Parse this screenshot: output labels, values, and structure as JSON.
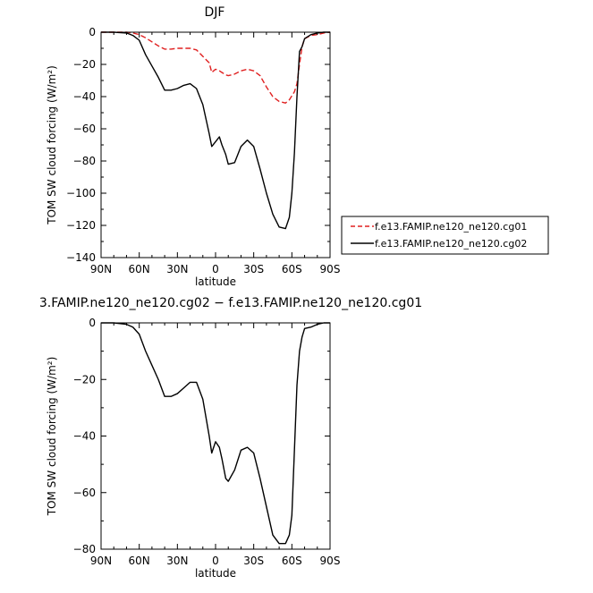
{
  "chart_data": [
    {
      "type": "line",
      "title": "DJF",
      "xlabel": "latitude",
      "ylabel": "TOM SW cloud forcing (W/m²)",
      "xlim": [
        90,
        -90
      ],
      "ylim": [
        -140,
        0
      ],
      "x_ticks": [
        90,
        60,
        30,
        0,
        -30,
        -60,
        -90
      ],
      "x_tick_labels": [
        "90N",
        "60N",
        "30N",
        "0",
        "30S",
        "60S",
        "90S"
      ],
      "y_ticks": [
        0,
        -20,
        -40,
        -60,
        -80,
        -100,
        -120,
        -140
      ],
      "y_tick_labels": [
        "0",
        "−20",
        "−40",
        "−60",
        "−80",
        "−100",
        "−120",
        "−140"
      ],
      "legend_position": "right",
      "series": [
        {
          "name": "f.e13.FAMIP.ne120_ne120.cg01",
          "color": "#e02020",
          "dash": true,
          "x": [
            90,
            80,
            70,
            65,
            60,
            55,
            50,
            45,
            40,
            35,
            30,
            25,
            20,
            15,
            10,
            5,
            3,
            0,
            -3,
            -5,
            -8,
            -10,
            -15,
            -20,
            -25,
            -30,
            -35,
            -40,
            -45,
            -50,
            -55,
            -58,
            -62,
            -64,
            -66,
            -68,
            -70,
            -75,
            -80,
            -85,
            -90
          ],
          "y": [
            0,
            0,
            0,
            -0.5,
            -1.5,
            -3.5,
            -6,
            -8.5,
            -10.5,
            -10.5,
            -10,
            -10,
            -10,
            -11,
            -15,
            -19,
            -25,
            -23,
            -24,
            -25,
            -26.5,
            -27,
            -26,
            -24,
            -23,
            -24,
            -27,
            -34,
            -40,
            -43,
            -44,
            -42,
            -37,
            -32,
            -20,
            -9,
            -4,
            -2,
            -1.5,
            -0.5,
            0
          ]
        },
        {
          "name": "f.e13.FAMIP.ne120_ne120.cg02",
          "color": "#000000",
          "dash": false,
          "x": [
            90,
            80,
            70,
            65,
            60,
            55,
            50,
            45,
            40,
            35,
            30,
            25,
            20,
            15,
            10,
            5,
            3,
            0,
            -3,
            -5,
            -8,
            -10,
            -15,
            -20,
            -25,
            -30,
            -35,
            -40,
            -45,
            -50,
            -55,
            -58,
            -60,
            -62,
            -64,
            -66,
            -68,
            -70,
            -75,
            -80,
            -85,
            -90
          ],
          "y": [
            0,
            0,
            -0.5,
            -2,
            -5,
            -14,
            -21,
            -28,
            -36,
            -36,
            -35,
            -33,
            -32,
            -35,
            -45,
            -63,
            -71,
            -68,
            -65,
            -70,
            -76,
            -82,
            -81,
            -71,
            -67,
            -71,
            -85,
            -100,
            -113,
            -121,
            -122,
            -115,
            -100,
            -75,
            -40,
            -12,
            -9,
            -4,
            -1.5,
            -0.5,
            0,
            0
          ]
        }
      ]
    },
    {
      "type": "line",
      "title": "3.FAMIP.ne120_ne120.cg02 − f.e13.FAMIP.ne120_ne120.cg01",
      "xlabel": "latitude",
      "ylabel": "TOM SW cloud forcing (W/m²)",
      "xlim": [
        90,
        -90
      ],
      "ylim": [
        -80,
        0
      ],
      "x_ticks": [
        90,
        60,
        30,
        0,
        -30,
        -60,
        -90
      ],
      "x_tick_labels": [
        "90N",
        "60N",
        "30N",
        "0",
        "30S",
        "60S",
        "90S"
      ],
      "y_ticks": [
        0,
        -20,
        -40,
        -60,
        -80
      ],
      "y_tick_labels": [
        "0",
        "−20",
        "−40",
        "−60",
        "−80"
      ],
      "series": [
        {
          "color": "#000000",
          "dash": false,
          "x": [
            90,
            80,
            70,
            65,
            60,
            55,
            50,
            45,
            40,
            35,
            30,
            25,
            20,
            15,
            10,
            5,
            3,
            0,
            -3,
            -5,
            -8,
            -10,
            -15,
            -20,
            -25,
            -30,
            -35,
            -40,
            -45,
            -50,
            -55,
            -58,
            -60,
            -62,
            -64,
            -66,
            -68,
            -70,
            -75,
            -80,
            -85,
            -90
          ],
          "y": [
            0,
            0,
            -0.5,
            -1.5,
            -4,
            -10,
            -15,
            -20,
            -26,
            -26,
            -25,
            -23,
            -21,
            -21,
            -27,
            -40,
            -46,
            -42,
            -44,
            -48,
            -55,
            -56,
            -52,
            -45,
            -44,
            -46,
            -55,
            -65,
            -75,
            -78,
            -78,
            -75,
            -68,
            -45,
            -22,
            -10,
            -5,
            -2,
            -1.5,
            -0.5,
            0,
            0
          ]
        }
      ]
    }
  ]
}
